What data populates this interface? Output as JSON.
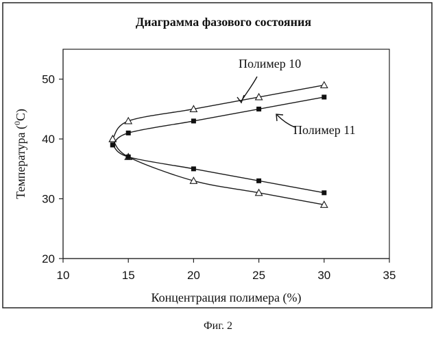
{
  "chart_data": {
    "type": "line",
    "title": "Диаграмма фазового состояния",
    "xlabel": "Концентрация полимера (%)",
    "ylabel_main": "Температура (",
    "ylabel_sup": "0",
    "ylabel_unit": "C)",
    "xlim": [
      10,
      35
    ],
    "ylim": [
      20,
      55
    ],
    "xticks": [
      10,
      15,
      20,
      25,
      30,
      35
    ],
    "yticks": [
      20,
      30,
      40,
      50
    ],
    "series": [
      {
        "name": "Полимер 10",
        "marker": "triangle-open",
        "branches": [
          {
            "x": [
              13.8,
              15,
              20,
              25,
              30
            ],
            "y": [
              40,
              43,
              45,
              47,
              49
            ]
          },
          {
            "x": [
              13.8,
              15,
              20,
              25,
              30
            ],
            "y": [
              40,
              37,
              33,
              31,
              29
            ]
          }
        ]
      },
      {
        "name": "Полимер 11",
        "marker": "square-filled",
        "branches": [
          {
            "x": [
              13.8,
              15,
              20,
              25,
              30
            ],
            "y": [
              39,
              41,
              43,
              45,
              47
            ]
          },
          {
            "x": [
              13.8,
              15,
              20,
              25,
              30
            ],
            "y": [
              39,
              37,
              35,
              33,
              31
            ]
          }
        ]
      }
    ]
  },
  "caption": "Фиг. 2"
}
